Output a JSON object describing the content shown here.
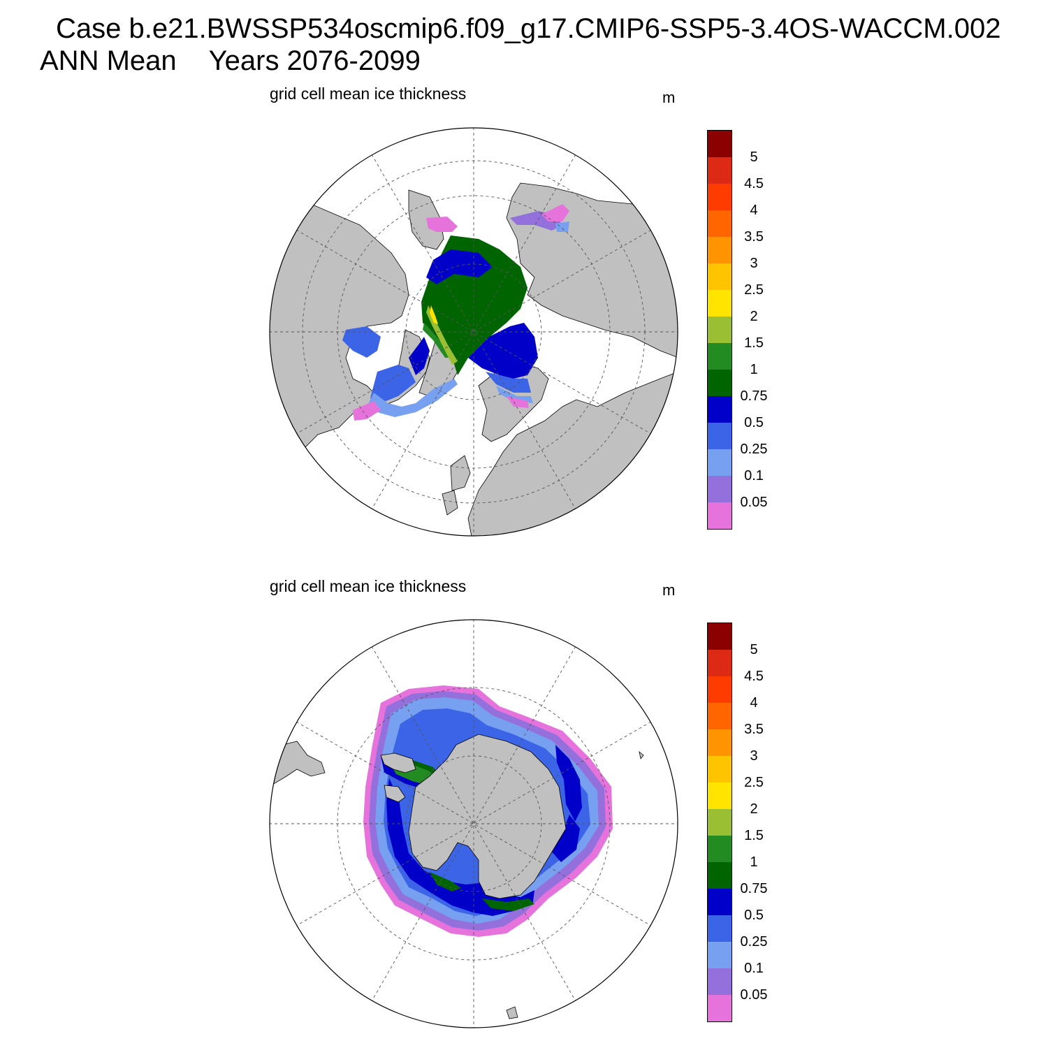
{
  "header": {
    "case_line": "Case b.e21.BWSSP534oscmip6.f09_g17.CMIP6-SSP5-3.4OS-WACCM.002",
    "season": "ANN Mean",
    "years": "Years 2076-2099"
  },
  "colorbar": {
    "levels": [
      "5",
      "4.5",
      "4",
      "3.5",
      "3",
      "2.5",
      "2",
      "1.5",
      "1",
      "0.75",
      "0.5",
      "0.25",
      "0.1",
      "0.05"
    ],
    "colors": [
      "#8b0000",
      "#dc2a14",
      "#ff3c00",
      "#ff6600",
      "#ff9400",
      "#ffc400",
      "#ffe400",
      "#9bbf32",
      "#228b22",
      "#006400",
      "#0000c8",
      "#3c64e6",
      "#78a0f0",
      "#9370db",
      "#e673dc"
    ]
  },
  "panels": [
    {
      "id": "north",
      "title": "grid cell mean ice thickness",
      "units": "m",
      "hemisphere": "Northern"
    },
    {
      "id": "south",
      "title": "grid cell mean ice thickness",
      "units": "m",
      "hemisphere": "Southern"
    }
  ],
  "map_style": {
    "land_color": "#c0c0c0",
    "ocean_color": "#ffffff",
    "grid": "dashed",
    "projection": "polar stereographic"
  }
}
